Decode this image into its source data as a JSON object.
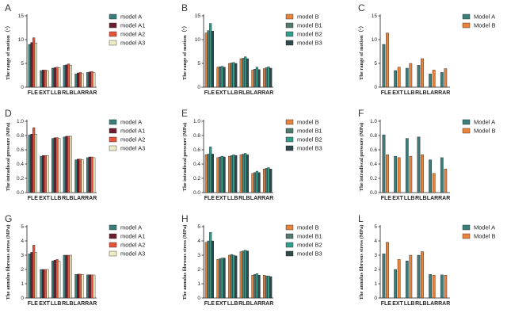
{
  "colors": {
    "model_A": "#3a7d7b",
    "model_A1": "#6b1f2e",
    "model_A2": "#e2553d",
    "model_A3": "#eeeac6",
    "model_B": "#e9823a",
    "model_B1": "#4f7a72",
    "model_B2": "#2f9e8c",
    "model_B3": "#2e4a4e"
  },
  "chart_data": [
    {
      "panel": "A",
      "type": "bar",
      "ylabel": "The range of motion（°）",
      "ylim": [
        0,
        15
      ],
      "yticks": [
        0,
        5,
        10,
        15
      ],
      "categories": [
        "FLE",
        "EXT",
        "LLB",
        "RLB",
        "LAR",
        "RAR"
      ],
      "series": [
        {
          "name": "model A",
          "color_key": "model_A",
          "values": [
            9.0,
            3.5,
            4.0,
            4.6,
            2.8,
            3.1
          ]
        },
        {
          "name": "model A1",
          "color_key": "model_A1",
          "values": [
            9.4,
            3.6,
            4.1,
            4.7,
            3.0,
            3.2
          ]
        },
        {
          "name": "model A2",
          "color_key": "model_A2",
          "values": [
            10.4,
            3.6,
            4.2,
            4.9,
            3.1,
            3.3
          ]
        },
        {
          "name": "model A3",
          "color_key": "model_A3",
          "values": [
            9.3,
            3.5,
            4.1,
            4.6,
            2.9,
            3.1
          ]
        }
      ]
    },
    {
      "panel": "B",
      "type": "bar",
      "ylabel": "The range of motion（°）",
      "ylim": [
        0,
        15
      ],
      "yticks": [
        0,
        5,
        10,
        15
      ],
      "categories": [
        "FLE",
        "EXT",
        "LLB",
        "RLB",
        "LAR",
        "RAR"
      ],
      "series": [
        {
          "name": "model B",
          "color_key": "model_B",
          "values": [
            11.4,
            4.2,
            5.0,
            6.0,
            3.6,
            3.9
          ]
        },
        {
          "name": "model B1",
          "color_key": "model_B1",
          "values": [
            11.9,
            4.3,
            5.1,
            6.1,
            3.8,
            4.1
          ]
        },
        {
          "name": "model B2",
          "color_key": "model_B2",
          "values": [
            13.4,
            4.4,
            5.2,
            6.4,
            4.2,
            4.3
          ]
        },
        {
          "name": "model B3",
          "color_key": "model_B3",
          "values": [
            11.8,
            4.2,
            5.0,
            6.0,
            3.7,
            4.0
          ]
        }
      ]
    },
    {
      "panel": "C",
      "type": "bar",
      "ylabel": "The range of motion（°）",
      "ylim": [
        0,
        15
      ],
      "yticks": [
        0,
        5,
        10,
        15
      ],
      "categories": [
        "FLE",
        "EXT",
        "LLB",
        "RLB",
        "LAR",
        "RAR"
      ],
      "series": [
        {
          "name": "Model A",
          "color_key": "model_A",
          "values": [
            9.0,
            3.5,
            4.0,
            4.6,
            2.8,
            3.1
          ]
        },
        {
          "name": "Model B",
          "color_key": "model_B",
          "values": [
            11.4,
            4.2,
            5.0,
            6.0,
            3.6,
            3.9
          ]
        }
      ]
    },
    {
      "panel": "D",
      "type": "bar",
      "ylabel": "The intradiscal pressure (MPa)",
      "ylim": [
        0,
        1.0
      ],
      "yticks": [
        0.0,
        0.2,
        0.4,
        0.6,
        0.8,
        1.0
      ],
      "categories": [
        "FLE",
        "EXT",
        "LLB",
        "RLB",
        "LAR",
        "RAR"
      ],
      "series": [
        {
          "name": "model A",
          "color_key": "model_A",
          "values": [
            0.81,
            0.51,
            0.76,
            0.78,
            0.46,
            0.49
          ]
        },
        {
          "name": "model A1",
          "color_key": "model_A1",
          "values": [
            0.82,
            0.52,
            0.77,
            0.79,
            0.47,
            0.5
          ]
        },
        {
          "name": "model A2",
          "color_key": "model_A2",
          "values": [
            0.91,
            0.52,
            0.77,
            0.79,
            0.47,
            0.5
          ]
        },
        {
          "name": "model A3",
          "color_key": "model_A3",
          "values": [
            0.82,
            0.52,
            0.76,
            0.79,
            0.46,
            0.49
          ]
        }
      ]
    },
    {
      "panel": "E",
      "type": "bar",
      "ylabel": "The intradiscal pressure (MPa)",
      "ylim": [
        0,
        1.0
      ],
      "yticks": [
        0.0,
        0.2,
        0.4,
        0.6,
        0.8,
        1.0
      ],
      "categories": [
        "FLE",
        "EXT",
        "LLB",
        "RLB",
        "LAR",
        "RAR"
      ],
      "series": [
        {
          "name": "model B",
          "color_key": "model_B",
          "values": [
            0.53,
            0.49,
            0.51,
            0.53,
            0.27,
            0.33
          ]
        },
        {
          "name": "model B1",
          "color_key": "model_B1",
          "values": [
            0.54,
            0.5,
            0.52,
            0.54,
            0.28,
            0.34
          ]
        },
        {
          "name": "model B2",
          "color_key": "model_B2",
          "values": [
            0.64,
            0.51,
            0.53,
            0.55,
            0.3,
            0.35
          ]
        },
        {
          "name": "model B3",
          "color_key": "model_B3",
          "values": [
            0.54,
            0.5,
            0.52,
            0.53,
            0.28,
            0.33
          ]
        }
      ]
    },
    {
      "panel": "F",
      "type": "bar",
      "ylabel": "The intradiscal pressure (MPa)",
      "ylim": [
        0,
        1.0
      ],
      "yticks": [
        0.0,
        0.2,
        0.4,
        0.6,
        0.8,
        1.0
      ],
      "categories": [
        "FLE",
        "EXT",
        "LLB",
        "RLB",
        "LAR",
        "RAR"
      ],
      "series": [
        {
          "name": "Model A",
          "color_key": "model_A",
          "values": [
            0.81,
            0.51,
            0.76,
            0.78,
            0.46,
            0.49
          ]
        },
        {
          "name": "Model B",
          "color_key": "model_B",
          "values": [
            0.53,
            0.49,
            0.51,
            0.53,
            0.27,
            0.33
          ]
        }
      ]
    },
    {
      "panel": "G",
      "type": "bar",
      "ylabel": "The annulus fibrosus stress (MPa)",
      "ylim": [
        0,
        5
      ],
      "yticks": [
        0,
        1,
        2,
        3,
        4,
        5
      ],
      "categories": [
        "FLE",
        "EXT",
        "LLB",
        "RLB",
        "LAR",
        "RAR"
      ],
      "series": [
        {
          "name": "model A",
          "color_key": "model_A",
          "values": [
            3.1,
            2.0,
            2.6,
            3.0,
            1.65,
            1.62
          ]
        },
        {
          "name": "model A1",
          "color_key": "model_A1",
          "values": [
            3.2,
            2.0,
            2.65,
            3.0,
            1.67,
            1.63
          ]
        },
        {
          "name": "model A2",
          "color_key": "model_A2",
          "values": [
            3.7,
            2.0,
            2.7,
            3.0,
            1.67,
            1.62
          ]
        },
        {
          "name": "model A3",
          "color_key": "model_A3",
          "values": [
            3.2,
            2.0,
            2.6,
            3.0,
            1.65,
            1.61
          ]
        }
      ]
    },
    {
      "panel": "H",
      "type": "bar",
      "ylabel": "The annulus fibrosus stress (MPa)",
      "ylim": [
        0,
        5
      ],
      "yticks": [
        0,
        1,
        2,
        3,
        4,
        5
      ],
      "categories": [
        "FLE",
        "EXT",
        "LLB",
        "RLB",
        "LAR",
        "RAR"
      ],
      "series": [
        {
          "name": "model B",
          "color_key": "model_B",
          "values": [
            3.9,
            2.7,
            3.0,
            3.25,
            1.6,
            1.6
          ]
        },
        {
          "name": "model B1",
          "color_key": "model_B1",
          "values": [
            4.0,
            2.75,
            3.05,
            3.3,
            1.65,
            1.55
          ]
        },
        {
          "name": "model B2",
          "color_key": "model_B2",
          "values": [
            4.6,
            2.8,
            3.0,
            3.35,
            1.7,
            1.55
          ]
        },
        {
          "name": "model B3",
          "color_key": "model_B3",
          "values": [
            4.0,
            2.8,
            2.95,
            3.3,
            1.6,
            1.5
          ]
        }
      ]
    },
    {
      "panel": "L",
      "type": "bar",
      "ylabel": "The annulus fibrosus stress (MPa)",
      "ylim": [
        0,
        5
      ],
      "yticks": [
        0,
        1,
        2,
        3,
        4,
        5
      ],
      "categories": [
        "FLE",
        "EXT",
        "LLB",
        "RLB",
        "LAR",
        "RAR"
      ],
      "series": [
        {
          "name": "Model A",
          "color_key": "model_A",
          "values": [
            3.1,
            2.0,
            2.6,
            3.0,
            1.65,
            1.62
          ]
        },
        {
          "name": "Model B",
          "color_key": "model_B",
          "values": [
            3.9,
            2.7,
            3.0,
            3.25,
            1.6,
            1.6
          ]
        }
      ]
    }
  ]
}
